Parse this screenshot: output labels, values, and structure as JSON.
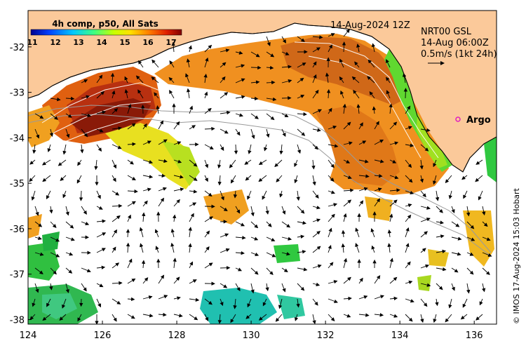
{
  "map": {
    "date_label": "14-Aug-2024 12Z",
    "product_lines": [
      "NRT00 GSL",
      "14-Aug 06:00Z",
      "0.5m/s (1kt 24h)"
    ],
    "argo_label": "Argo",
    "credit": "© IMOS 17-Aug-2024 15:03 Hobart",
    "x_ticks": [
      "124",
      "126",
      "128",
      "130",
      "132",
      "134",
      "136"
    ],
    "y_ticks": [
      "-32",
      "-33",
      "-34",
      "-35",
      "-36",
      "-37",
      "-38"
    ],
    "colorbar": {
      "title": "4h comp, p50, All Sats",
      "ticks": [
        "11",
        "12",
        "13",
        "14",
        "15",
        "16",
        "17"
      ]
    },
    "lon_range": [
      124,
      136.6
    ],
    "lat_range": [
      -38.1,
      -31.2
    ],
    "colors": {
      "land": "#fbc99a",
      "coast": "#000000",
      "isobath": "#9a9a9a",
      "argo": "#e020c0"
    }
  }
}
